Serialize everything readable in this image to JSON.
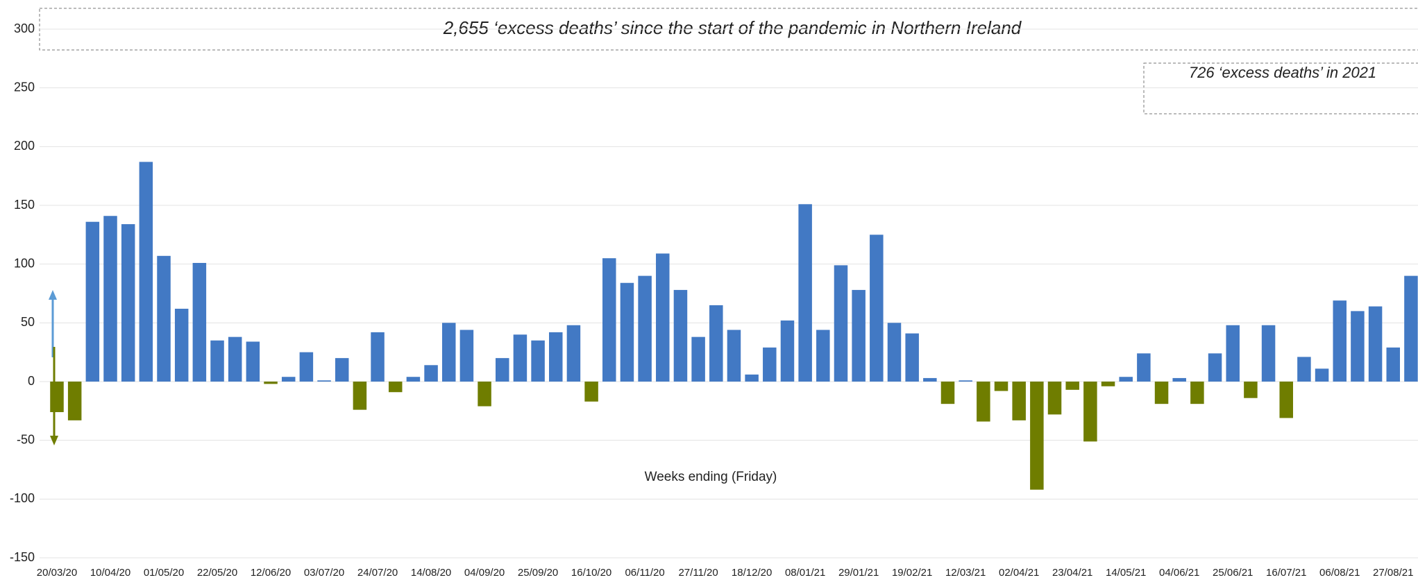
{
  "chart_data": {
    "type": "bar",
    "title": "2,655 ‘excess deaths’ since the start of the pandemic in Northern Ireland",
    "annotation": "726 ‘excess deaths’ in 2021",
    "x_label": "Weeks ending (Friday)",
    "categories": [
      "20/03/20",
      null,
      null,
      "10/04/20",
      null,
      null,
      "01/05/20",
      null,
      null,
      "22/05/20",
      null,
      null,
      "12/06/20",
      null,
      null,
      "03/07/20",
      null,
      null,
      "24/07/20",
      null,
      null,
      "14/08/20",
      null,
      null,
      "04/09/20",
      null,
      null,
      "25/09/20",
      null,
      null,
      "16/10/20",
      null,
      null,
      "06/11/20",
      null,
      null,
      "27/11/20",
      null,
      null,
      "18/12/20",
      null,
      null,
      "08/01/21",
      null,
      null,
      "29/01/21",
      null,
      null,
      "19/02/21",
      null,
      null,
      "12/03/21",
      null,
      null,
      "02/04/21",
      null,
      null,
      "23/04/21",
      null,
      null,
      "14/05/21",
      null,
      null,
      "04/06/21",
      null,
      null,
      "25/06/21",
      null,
      null,
      "16/07/21",
      null,
      null,
      "06/08/21",
      null,
      null,
      "27/08/21",
      null
    ],
    "values": [
      -26,
      -33,
      136,
      141,
      134,
      187,
      107,
      62,
      101,
      35,
      38,
      34,
      -2,
      4,
      25,
      1,
      20,
      -24,
      42,
      -9,
      4,
      14,
      50,
      44,
      -21,
      20,
      40,
      35,
      42,
      48,
      -17,
      105,
      84,
      90,
      109,
      78,
      38,
      65,
      44,
      6,
      29,
      52,
      151,
      44,
      99,
      78,
      125,
      50,
      41,
      3,
      -19,
      1,
      -34,
      -8,
      -33,
      -92,
      -28,
      -7,
      -51,
      -4,
      4,
      24,
      -19,
      3,
      -19,
      24,
      48,
      -14,
      48,
      -31,
      21,
      11,
      69,
      60,
      64,
      29,
      90
    ],
    "positive_color": "#4279c4",
    "negative_color": "#6f7d00",
    "ylim": [
      -150,
      300
    ],
    "yticks": [
      -150,
      -100,
      -50,
      0,
      50,
      100,
      150,
      200,
      250,
      300
    ],
    "grid": true
  }
}
